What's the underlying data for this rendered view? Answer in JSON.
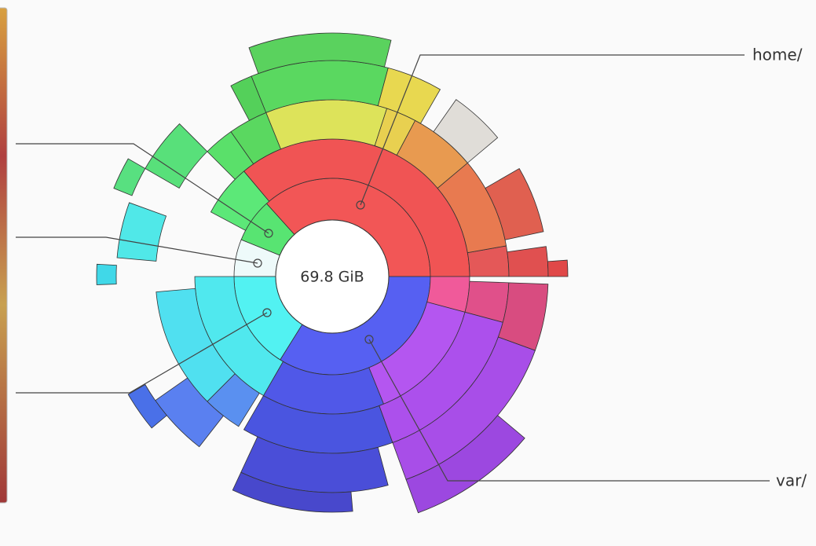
{
  "chart": {
    "total": "69.8 GiB",
    "callouts": [
      {
        "label": "home/"
      },
      {
        "label": "var/"
      }
    ]
  }
}
